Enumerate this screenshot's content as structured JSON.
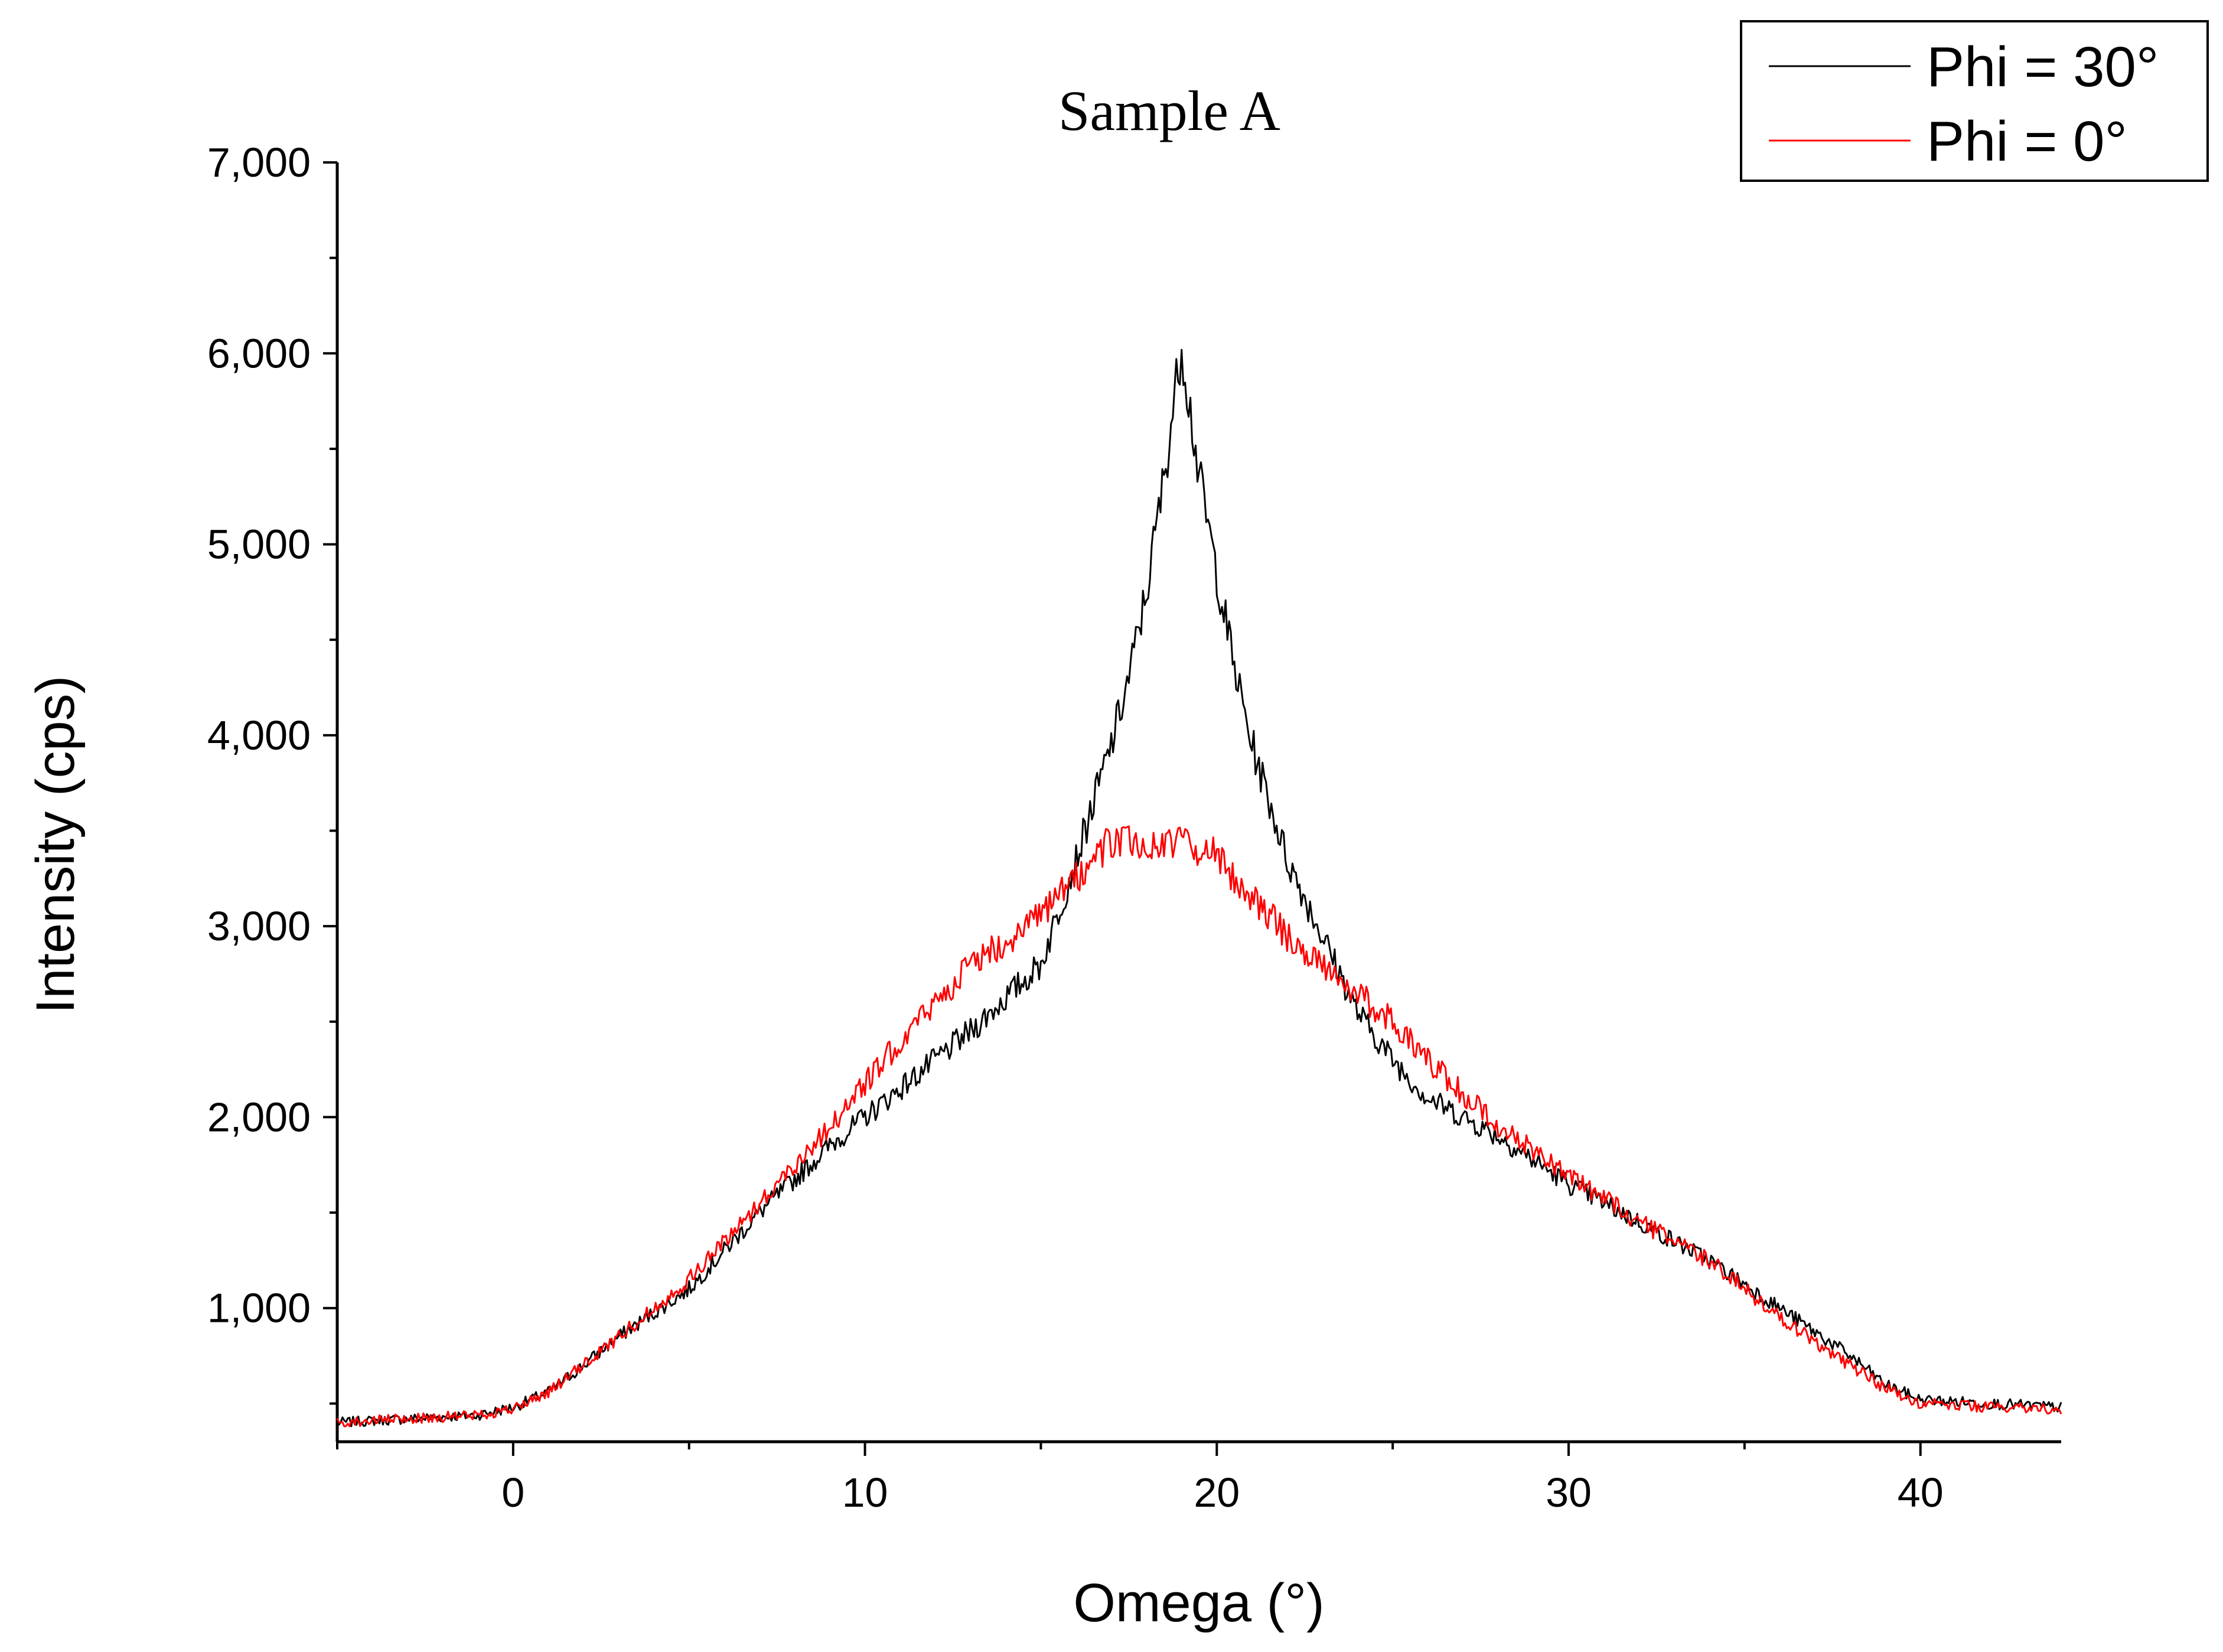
{
  "chart_data": {
    "type": "line",
    "title": "Sample A",
    "xlabel": "Omega (°)",
    "ylabel": "Intensity (cps)",
    "xlim": [
      -5,
      44
    ],
    "ylim": [
      300,
      7000
    ],
    "x_ticks": [
      0,
      10,
      20,
      30,
      40
    ],
    "x_tick_labels": [
      "0",
      "10",
      "20",
      "30",
      "40"
    ],
    "y_ticks": [
      1000,
      2000,
      3000,
      4000,
      5000,
      6000,
      7000
    ],
    "y_tick_labels": [
      "1,000",
      "2,000",
      "3,000",
      "4,000",
      "5,000",
      "6,000",
      "7,000"
    ],
    "grid": false,
    "legend": "top-right",
    "series": [
      {
        "name": "Phi = 30°",
        "color": "#000000",
        "x": [
          -5,
          -3,
          -1,
          0,
          1,
          2,
          3,
          5,
          7,
          9,
          11,
          13,
          15,
          16,
          16.5,
          17,
          17.5,
          18,
          18.5,
          19,
          19.5,
          20,
          20.5,
          21,
          22,
          23,
          24,
          25,
          26,
          28,
          30,
          32,
          34,
          36,
          38,
          39,
          40,
          42,
          44
        ],
        "y": [
          400,
          420,
          440,
          480,
          560,
          700,
          850,
          1100,
          1500,
          1850,
          2150,
          2450,
          2800,
          3350,
          3650,
          3950,
          4300,
          4750,
          5350,
          6050,
          5350,
          4850,
          4350,
          3950,
          3350,
          2950,
          2550,
          2300,
          2100,
          1900,
          1650,
          1450,
          1250,
          1000,
          750,
          600,
          520,
          500,
          480
        ]
      },
      {
        "name": "Phi = 0°",
        "color": "#ff0000",
        "x": [
          -5,
          -3,
          -1,
          0,
          1,
          2,
          3,
          5,
          7,
          9,
          11,
          13,
          15,
          16,
          17,
          18,
          19,
          20,
          21,
          22,
          23,
          24,
          25,
          26,
          28,
          30,
          32,
          34,
          36,
          38,
          39,
          40,
          42,
          44
        ],
        "y": [
          400,
          420,
          440,
          470,
          560,
          700,
          850,
          1150,
          1550,
          1950,
          2400,
          2800,
          3050,
          3250,
          3450,
          3420,
          3440,
          3370,
          3150,
          2950,
          2800,
          2650,
          2500,
          2300,
          1950,
          1700,
          1450,
          1250,
          950,
          700,
          580,
          500,
          480,
          470
        ]
      }
    ]
  }
}
